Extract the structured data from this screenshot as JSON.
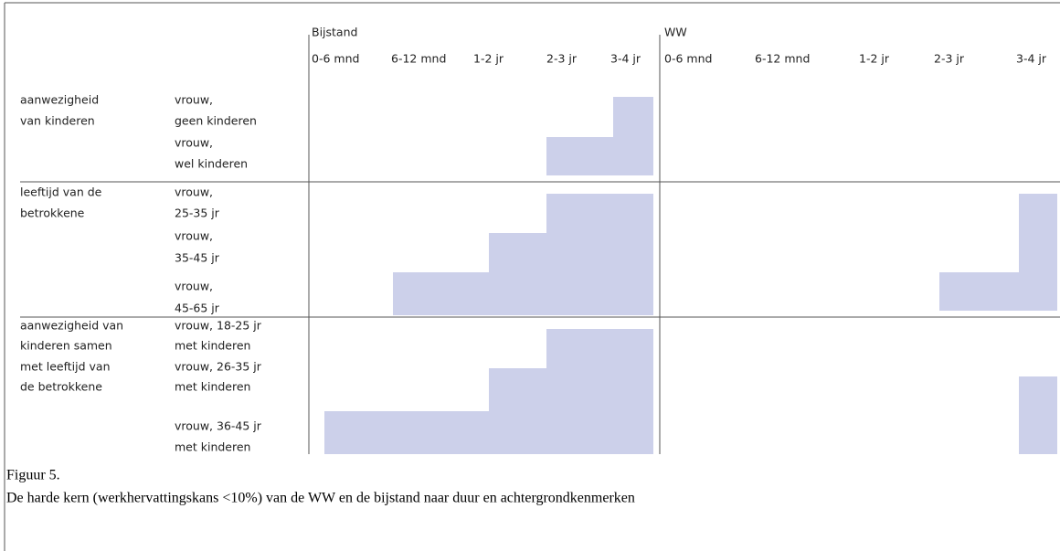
{
  "groups": [
    {
      "name": "Bijstand",
      "columns": [
        "0-6 mnd",
        "6-12 mnd",
        "1-2 jr",
        "2-3 jr",
        "3-4 jr"
      ]
    },
    {
      "name": "WW",
      "columns": [
        "0-6 mnd",
        "6-12 mnd",
        "1-2 jr",
        "2-3 jr",
        "3-4 jr"
      ]
    }
  ],
  "sections": [
    {
      "label": [
        "aanwezigheid",
        "van kinderen"
      ],
      "rows": [
        [
          "vrouw,",
          "geen kinderen"
        ],
        [
          "vrouw,",
          "wel kinderen"
        ]
      ]
    },
    {
      "label": [
        "leeftijd van de",
        "betrokkene"
      ],
      "rows": [
        [
          "vrouw,",
          "25-35 jr"
        ],
        [
          "vrouw,",
          "35-45 jr"
        ],
        [
          "vrouw,",
          "45-65 jr"
        ]
      ]
    },
    {
      "label": [
        "aanwezigheid van",
        "kinderen samen",
        "met leeftijd van",
        "de betrokkene"
      ],
      "rows": [
        [
          "vrouw, 18-25 jr",
          "met kinderen"
        ],
        [
          "vrouw, 26-35 jr",
          "met kinderen"
        ],
        [
          "vrouw, 36-45 jr",
          "met kinderen"
        ]
      ]
    }
  ],
  "caption": {
    "title": "Figuur 5.",
    "text": "De harde kern (werkhervattingskans <10%) van de WW en de bijstand naar duur en achtergrondkenmerken"
  }
}
